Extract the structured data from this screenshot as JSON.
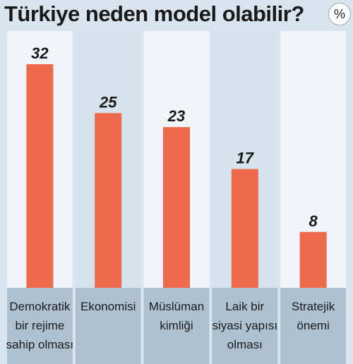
{
  "title": "Türkiye neden model olabilir?",
  "unit_badge": "%",
  "colors": {
    "bar": "#ef6a4c",
    "column_light": "#f1f5f9",
    "column_shaded": "#d6e2ec",
    "label_band": "#aec1d1",
    "text": "#1a1a1a"
  },
  "chart_data": {
    "type": "bar",
    "title": "Türkiye neden model olabilir?",
    "unit": "%",
    "categories": [
      "Demokratik bir rejime sahip olması",
      "Ekonomisi",
      "Müslüman kimliği",
      "Laik bir siyasi yapısı olması",
      "Stratejik önemi"
    ],
    "category_lines": [
      [
        "Demokratik",
        "bir rejime",
        "sahip olması"
      ],
      [
        "Ekonomisi"
      ],
      [
        "Müslüman",
        "kimliği"
      ],
      [
        "Laik bir",
        "siyasi yapısı",
        "olması"
      ],
      [
        "Stratejik",
        "önemi"
      ]
    ],
    "values": [
      32,
      25,
      23,
      17,
      8
    ],
    "ylim": [
      0,
      32
    ],
    "grid": false,
    "legend": "none"
  }
}
